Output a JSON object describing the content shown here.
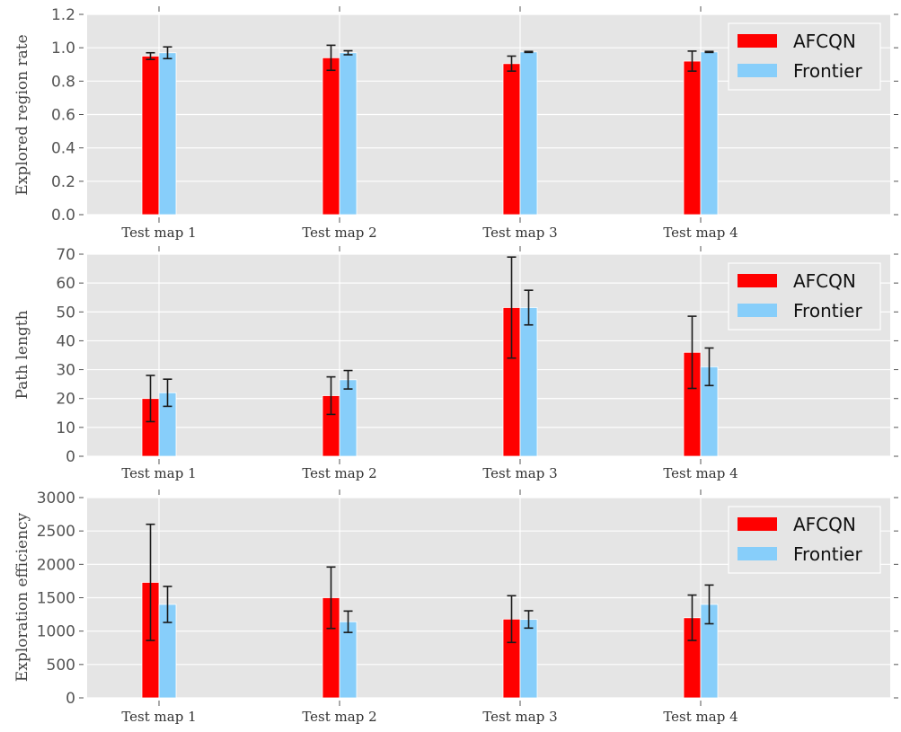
{
  "chart_data": [
    {
      "type": "bar",
      "title": "",
      "xlabel": "",
      "ylabel": "Explored region rate",
      "categories": [
        "Test map 1",
        "Test map 2",
        "Test map 3",
        "Test map 4"
      ],
      "ylim": [
        0,
        1.2
      ],
      "yticks": [
        0.0,
        0.2,
        0.4,
        0.6,
        0.8,
        1.0,
        1.2
      ],
      "ytick_labels": [
        "0.0",
        "0.2",
        "0.4",
        "0.6",
        "0.8",
        "1.0",
        "1.2"
      ],
      "grid": true,
      "legend": "top-right",
      "series": [
        {
          "name": "AFCQN",
          "color": "#ff0000",
          "values": [
            0.95,
            0.94,
            0.905,
            0.92
          ],
          "errors": [
            0.02,
            0.075,
            0.045,
            0.06
          ]
        },
        {
          "name": "Frontier",
          "color": "#87cefa",
          "values": [
            0.97,
            0.97,
            0.975,
            0.975
          ],
          "errors": [
            0.035,
            0.012,
            0.003,
            0.003
          ]
        }
      ]
    },
    {
      "type": "bar",
      "title": "",
      "xlabel": "",
      "ylabel": "Path length",
      "categories": [
        "Test map 1",
        "Test map 2",
        "Test map 3",
        "Test map 4"
      ],
      "ylim": [
        0,
        70
      ],
      "yticks": [
        0,
        10,
        20,
        30,
        40,
        50,
        60,
        70
      ],
      "ytick_labels": [
        "0",
        "10",
        "20",
        "30",
        "40",
        "50",
        "60",
        "70"
      ],
      "grid": true,
      "legend": "top-right",
      "series": [
        {
          "name": "AFCQN",
          "color": "#ff0000",
          "values": [
            20,
            21,
            51.5,
            36
          ],
          "errors": [
            8,
            6.5,
            17.5,
            12.5
          ]
        },
        {
          "name": "Frontier",
          "color": "#87cefa",
          "values": [
            22,
            26.5,
            51.5,
            31
          ],
          "errors": [
            4.7,
            3.2,
            6,
            6.5
          ]
        }
      ]
    },
    {
      "type": "bar",
      "title": "",
      "xlabel": "",
      "ylabel": "Exploration efficiency",
      "categories": [
        "Test map 1",
        "Test map 2",
        "Test map 3",
        "Test map  4"
      ],
      "ylim": [
        0,
        3000
      ],
      "yticks": [
        0,
        500,
        1000,
        1500,
        2000,
        2500,
        3000
      ],
      "ytick_labels": [
        "0",
        "500",
        "1000",
        "1500",
        "2000",
        "2500",
        "3000"
      ],
      "grid": true,
      "legend": "top-right",
      "series": [
        {
          "name": "AFCQN",
          "color": "#ff0000",
          "values": [
            1730,
            1500,
            1180,
            1200
          ],
          "errors": [
            870,
            460,
            350,
            340
          ]
        },
        {
          "name": "Frontier",
          "color": "#87cefa",
          "values": [
            1400,
            1140,
            1175,
            1400
          ],
          "errors": [
            270,
            160,
            130,
            290
          ]
        }
      ]
    }
  ],
  "style": {
    "plot_background": "#e5e5e5",
    "grid_color": "#ffffff",
    "error_bar_color": "#1a1a1a"
  }
}
